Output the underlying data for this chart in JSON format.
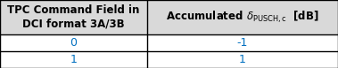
{
  "col1_header": "TPC Command Field in\nDCI format 3A/3B",
  "col2_header": "Accumulated $\\delta_{\\mathrm{PUSCH,c}}$  [dB]",
  "rows": [
    {
      "col1": "0",
      "col2": "-1"
    },
    {
      "col1": "1",
      "col2": "1"
    }
  ],
  "col_split": 0.435,
  "header_bg": "#d9d9d9",
  "row_bg": "#ffffff",
  "border_color": "#000000",
  "header_text_color": "#000000",
  "data_text_color": "#0070c0",
  "header_fontsize": 8.5,
  "data_fontsize": 9,
  "fig_width": 3.79,
  "fig_height": 0.77,
  "dpi": 100,
  "row_tops": [
    1.0,
    0.5,
    0.25,
    0.0
  ]
}
